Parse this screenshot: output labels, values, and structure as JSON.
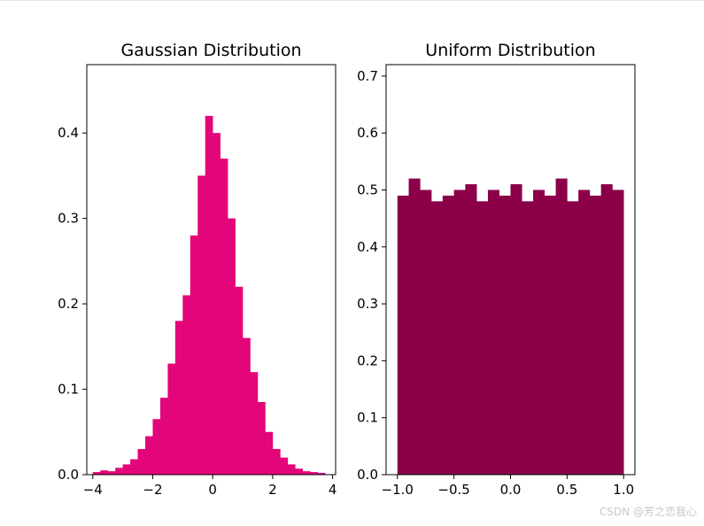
{
  "chart_data": [
    {
      "type": "bar",
      "title": "Gaussian Distribution",
      "xlabel": "",
      "ylabel": "",
      "xlim": [
        -4.2,
        4.1
      ],
      "ylim": [
        0,
        0.48
      ],
      "xticks": [
        -4,
        -2,
        0,
        2,
        4
      ],
      "yticks": [
        0.0,
        0.1,
        0.2,
        0.3,
        0.4
      ],
      "xtick_labels": [
        "−4",
        "−2",
        "0",
        "2",
        "4"
      ],
      "ytick_labels": [
        "0.0",
        "0.1",
        "0.2",
        "0.3",
        "0.4"
      ],
      "color": "#e3057a",
      "bin_width": 0.25,
      "x": [
        -3.875,
        -3.625,
        -3.375,
        -3.125,
        -2.875,
        -2.625,
        -2.375,
        -2.125,
        -1.875,
        -1.625,
        -1.375,
        -1.125,
        -0.875,
        -0.625,
        -0.375,
        -0.125,
        0.125,
        0.375,
        0.625,
        0.875,
        1.125,
        1.375,
        1.625,
        1.875,
        2.125,
        2.375,
        2.625,
        2.875,
        3.125,
        3.375,
        3.625
      ],
      "values": [
        0.003,
        0.005,
        0.004,
        0.008,
        0.012,
        0.018,
        0.03,
        0.045,
        0.065,
        0.09,
        0.13,
        0.18,
        0.21,
        0.28,
        0.35,
        0.42,
        0.4,
        0.37,
        0.3,
        0.22,
        0.16,
        0.12,
        0.085,
        0.05,
        0.03,
        0.02,
        0.012,
        0.007,
        0.004,
        0.003,
        0.002
      ]
    },
    {
      "type": "bar",
      "title": "Uniform Distribution",
      "xlabel": "",
      "ylabel": "",
      "xlim": [
        -1.1,
        1.1
      ],
      "ylim": [
        0,
        0.72
      ],
      "xticks": [
        -1.0,
        -0.5,
        0.0,
        0.5,
        1.0
      ],
      "yticks": [
        0.0,
        0.1,
        0.2,
        0.3,
        0.4,
        0.5,
        0.6,
        0.7
      ],
      "xtick_labels": [
        "−1.0",
        "−0.5",
        "0.0",
        "0.5",
        "1.0"
      ],
      "ytick_labels": [
        "0.0",
        "0.1",
        "0.2",
        "0.3",
        "0.4",
        "0.5",
        "0.6",
        "0.7"
      ],
      "color": "#8b0049",
      "bin_width": 0.1,
      "x": [
        -0.95,
        -0.85,
        -0.75,
        -0.65,
        -0.55,
        -0.45,
        -0.35,
        -0.25,
        -0.15,
        -0.05,
        0.05,
        0.15,
        0.25,
        0.35,
        0.45,
        0.55,
        0.65,
        0.75,
        0.85,
        0.95
      ],
      "values": [
        0.49,
        0.52,
        0.5,
        0.48,
        0.49,
        0.5,
        0.51,
        0.48,
        0.5,
        0.49,
        0.51,
        0.48,
        0.5,
        0.49,
        0.52,
        0.48,
        0.5,
        0.49,
        0.51,
        0.5
      ]
    }
  ],
  "watermark": "CSDN @芳之恋我心"
}
